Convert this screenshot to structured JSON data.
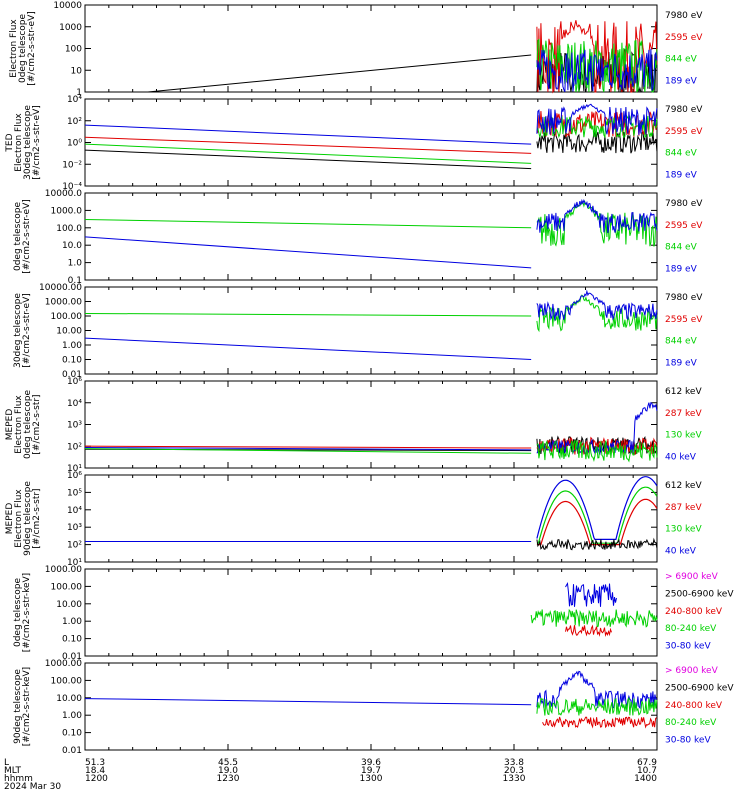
{
  "colors": {
    "black": "#000000",
    "red": "#e00000",
    "green": "#00d000",
    "blue": "#0000e0",
    "magenta": "#e000e0"
  },
  "chart_data": [
    {
      "type": "line",
      "ylabel": [
        "Electron Flux",
        "0deg telescope",
        "[#/cm2-s-str-eV]"
      ],
      "scale": "log",
      "ylim": [
        1,
        10000
      ],
      "yticks": [
        "10000",
        "1000",
        "100",
        "10",
        "1"
      ],
      "legend": [
        {
          "label": "7980 eV",
          "color": "#000000"
        },
        {
          "label": "2595 eV",
          "color": "#e00000"
        },
        {
          "label": "844 eV",
          "color": "#00d000"
        },
        {
          "label": "189 eV",
          "color": "#0000e0"
        }
      ],
      "series": [
        {
          "color": "#000000",
          "points": [
            [
              0.11,
              1.0
            ],
            [
              0.78,
              50
            ]
          ],
          "burst": {
            "level": 6,
            "amp": 1.2
          }
        },
        {
          "color": "#e00000",
          "points": [],
          "burst": {
            "level": 30,
            "amp": 1.8,
            "peak": [
              0.86,
              1500
            ]
          }
        },
        {
          "color": "#00d000",
          "points": [],
          "burst": {
            "level": 15,
            "amp": 1.3
          }
        },
        {
          "color": "#0000e0",
          "points": [],
          "burst": {
            "level": 10,
            "amp": 1.0,
            "peak": [
              0.88,
              1.5
            ]
          }
        }
      ]
    },
    {
      "type": "line",
      "ylabel": [
        "TED",
        "Electron Flux",
        "30deg telescope",
        "[#/cm2-s-str-eV]"
      ],
      "scale": "log",
      "ylim": [
        0.0001,
        10000
      ],
      "yticks": [
        "10⁴",
        "10²",
        "10⁰",
        "10⁻²",
        "10⁻⁴"
      ],
      "legend": [
        {
          "label": "7980 eV",
          "color": "#000000"
        },
        {
          "label": "2595 eV",
          "color": "#e00000"
        },
        {
          "label": "844 eV",
          "color": "#00d000"
        },
        {
          "label": "189 eV",
          "color": "#0000e0"
        }
      ],
      "series": [
        {
          "color": "#000000",
          "points": [
            [
              0.0,
              0.2
            ],
            [
              0.78,
              0.004
            ]
          ],
          "burst": {
            "level": 1,
            "amp": 1.0
          }
        },
        {
          "color": "#e00000",
          "points": [
            [
              0.0,
              3.0
            ],
            [
              0.78,
              0.1
            ]
          ],
          "burst": {
            "level": 50,
            "amp": 1.2
          }
        },
        {
          "color": "#00d000",
          "points": [
            [
              0.0,
              0.7
            ],
            [
              0.78,
              0.012
            ]
          ],
          "burst": {
            "level": 30,
            "amp": 1.0
          }
        },
        {
          "color": "#0000e0",
          "points": [
            [
              0.0,
              40
            ],
            [
              0.78,
              0.7
            ]
          ],
          "burst": {
            "level": 100,
            "amp": 1.3,
            "peak": [
              0.88,
              3000
            ]
          }
        }
      ]
    },
    {
      "type": "line",
      "ylabel": [
        "0deg telescope",
        "[#/cm2-s-str-eV]"
      ],
      "scale": "log",
      "ylim": [
        0.1,
        10000
      ],
      "yticks": [
        "10000.0",
        "1000.0",
        "100.0",
        "10.0",
        "1.0",
        "0.1"
      ],
      "legend": [
        {
          "label": "7980 eV",
          "color": "#000000"
        },
        {
          "label": "2595 eV",
          "color": "#e00000"
        },
        {
          "label": "844 eV",
          "color": "#00d000"
        },
        {
          "label": "189 eV",
          "color": "#0000e0"
        }
      ],
      "series": [
        {
          "color": "#00d000",
          "points": [
            [
              0.0,
              300
            ],
            [
              0.78,
              100
            ]
          ],
          "burst": {
            "level": 80,
            "amp": 1.0,
            "peak": [
              0.87,
              3000
            ]
          }
        },
        {
          "color": "#0000e0",
          "points": [
            [
              0.0,
              30
            ],
            [
              0.78,
              0.5
            ]
          ],
          "burst": {
            "level": 200,
            "amp": 0.6,
            "peak": [
              0.87,
              4000
            ]
          }
        }
      ]
    },
    {
      "type": "line",
      "ylabel": [
        "30deg telescope",
        "[#/cm2-s-str-eV]"
      ],
      "scale": "log",
      "ylim": [
        0.01,
        10000
      ],
      "yticks": [
        "10000.00",
        "1000.00",
        "100.00",
        "10.00",
        "1.00",
        "0.10",
        "0.01"
      ],
      "legend": [
        {
          "label": "7980 eV",
          "color": "#000000"
        },
        {
          "label": "2595 eV",
          "color": "#e00000"
        },
        {
          "label": "844 eV",
          "color": "#00d000"
        },
        {
          "label": "189 eV",
          "color": "#0000e0"
        }
      ],
      "series": [
        {
          "color": "#00d000",
          "points": [
            [
              0.0,
              150
            ],
            [
              0.78,
              100
            ]
          ],
          "burst": {
            "level": 60,
            "amp": 0.8,
            "peak": [
              0.87,
              2000
            ]
          }
        },
        {
          "color": "#0000e0",
          "points": [
            [
              0.0,
              3
            ],
            [
              0.78,
              0.1
            ]
          ],
          "burst": {
            "level": 200,
            "amp": 0.6,
            "peak": [
              0.88,
              4000
            ]
          }
        }
      ]
    },
    {
      "type": "line",
      "ylabel": [
        "MEPED",
        "Electron Flux",
        "0deg telescope",
        "[#/cm2-s-str]"
      ],
      "scale": "log",
      "ylim": [
        10,
        1000000
      ],
      "yticks": [
        "10⁶",
        "10⁴",
        "10³",
        "10²",
        "10¹"
      ],
      "legend": [
        {
          "label": "612 keV",
          "color": "#000000"
        },
        {
          "label": "287 keV",
          "color": "#e00000"
        },
        {
          "label": "130 keV",
          "color": "#00d000"
        },
        {
          "label": "40 keV",
          "color": "#0000e0"
        }
      ],
      "series": [
        {
          "color": "#000000",
          "points": [
            [
              0.0,
              120
            ],
            [
              0.78,
              100
            ]
          ],
          "burst": {
            "level": 200,
            "amp": 0.5
          }
        },
        {
          "color": "#e00000",
          "points": [
            [
              0.0,
              180
            ],
            [
              0.78,
              140
            ]
          ],
          "burst": {
            "level": 180,
            "amp": 0.5
          }
        },
        {
          "color": "#0000e0",
          "points": [
            [
              0.0,
              150
            ],
            [
              0.78,
              110
            ]
          ],
          "burst": {
            "level": 160,
            "amp": 0.4,
            "peak": [
              0.99,
              50000
            ]
          }
        },
        {
          "color": "#00d000",
          "points": [
            [
              0.0,
              130
            ],
            [
              0.78,
              70
            ]
          ],
          "burst": {
            "level": 100,
            "amp": 0.6
          }
        }
      ]
    },
    {
      "type": "line",
      "ylabel": [
        "MEPED",
        "Electron Flux",
        "90deg telescope",
        "[#/cm2-s-str]"
      ],
      "scale": "log",
      "ylim": [
        10,
        1000000
      ],
      "yticks": [
        "10⁶",
        "10⁵",
        "10⁴",
        "10³",
        "10²",
        "10¹"
      ],
      "legend": [
        {
          "label": "612 keV",
          "color": "#000000"
        },
        {
          "label": "287 keV",
          "color": "#e00000"
        },
        {
          "label": "130 keV",
          "color": "#00d000"
        },
        {
          "label": "40 keV",
          "color": "#0000e0"
        }
      ],
      "series": [
        {
          "color": "#0000e0",
          "points": [
            [
              0.0,
              150
            ],
            [
              0.78,
              150
            ]
          ],
          "hump": {
            "level": 200,
            "peaks": [
              [
                0.84,
                500000
              ],
              [
                0.98,
                800000
              ]
            ]
          }
        },
        {
          "color": "#00d000",
          "points": [],
          "hump": {
            "level": 120,
            "peaks": [
              [
                0.84,
                120000
              ],
              [
                0.98,
                200000
              ]
            ]
          }
        },
        {
          "color": "#e00000",
          "points": [],
          "hump": {
            "level": 100,
            "peaks": [
              [
                0.84,
                30000
              ],
              [
                0.98,
                40000
              ]
            ]
          }
        },
        {
          "color": "#000000",
          "points": [],
          "burst": {
            "level": 100,
            "amp": 0.3
          }
        }
      ]
    },
    {
      "type": "line",
      "ylabel": [
        "0deg telescope",
        "[#/cm2-s-str-keV]"
      ],
      "scale": "log",
      "ylim": [
        0.01,
        1000
      ],
      "yticks": [
        "1000.00",
        "100.00",
        "10.00",
        "1.00",
        "0.10",
        "0.01"
      ],
      "legend": [
        {
          "label": "> 6900 keV",
          "color": "#e000e0"
        },
        {
          "label": "2500-6900 keV",
          "color": "#000000"
        },
        {
          "label": "240-800 keV",
          "color": "#e00000"
        },
        {
          "label": "80-240 keV",
          "color": "#00d000"
        },
        {
          "label": "30-80 keV",
          "color": "#0000e0"
        }
      ],
      "series": [
        {
          "color": "#0000e0",
          "points": [],
          "burst": {
            "level": 30,
            "amp": 0.7,
            "start": 0.84,
            "end": 0.93
          }
        },
        {
          "color": "#00d000",
          "points": [],
          "burst": {
            "level": 1.5,
            "amp": 0.5,
            "start": 0.78,
            "end": 1.0
          }
        },
        {
          "color": "#e00000",
          "points": [],
          "burst": {
            "level": 0.3,
            "amp": 0.3,
            "start": 0.84,
            "end": 0.92
          }
        }
      ]
    },
    {
      "type": "line",
      "ylabel": [
        "90deg telescope",
        "[#/cm2-s-str-keV]"
      ],
      "scale": "log",
      "ylim": [
        0.01,
        1000
      ],
      "yticks": [
        "1000.00",
        "100.00",
        "10.00",
        "1.00",
        "0.10",
        "0.01"
      ],
      "legend": [
        {
          "label": "> 6900 keV",
          "color": "#e000e0"
        },
        {
          "label": "2500-6900 keV",
          "color": "#000000"
        },
        {
          "label": "240-800 keV",
          "color": "#e00000"
        },
        {
          "label": "80-240 keV",
          "color": "#00d000"
        },
        {
          "label": "30-80 keV",
          "color": "#0000e0"
        }
      ],
      "series": [
        {
          "color": "#0000e0",
          "points": [
            [
              0.0,
              9
            ],
            [
              0.78,
              4
            ]
          ],
          "burst": {
            "level": 8,
            "amp": 0.5,
            "peak": [
              0.86,
              300
            ]
          }
        },
        {
          "color": "#00d000",
          "points": [],
          "burst": {
            "level": 3,
            "amp": 0.5,
            "start": 0.79,
            "end": 1.0
          }
        },
        {
          "color": "#e00000",
          "points": [],
          "burst": {
            "level": 0.4,
            "amp": 0.3,
            "start": 0.8,
            "end": 1.0
          }
        }
      ]
    }
  ],
  "footer": {
    "rows": [
      {
        "label": "L",
        "values": [
          "51.3",
          "45.5",
          "39.6",
          "33.8",
          "67.9"
        ]
      },
      {
        "label": "MLT",
        "values": [
          "18.4",
          "19.0",
          "19.7",
          "20.3",
          "10.7"
        ]
      },
      {
        "label": "hhmm",
        "values": [
          "1200",
          "1230",
          "1300",
          "1330",
          "1400"
        ]
      }
    ],
    "date": "2024 Mar 30"
  }
}
